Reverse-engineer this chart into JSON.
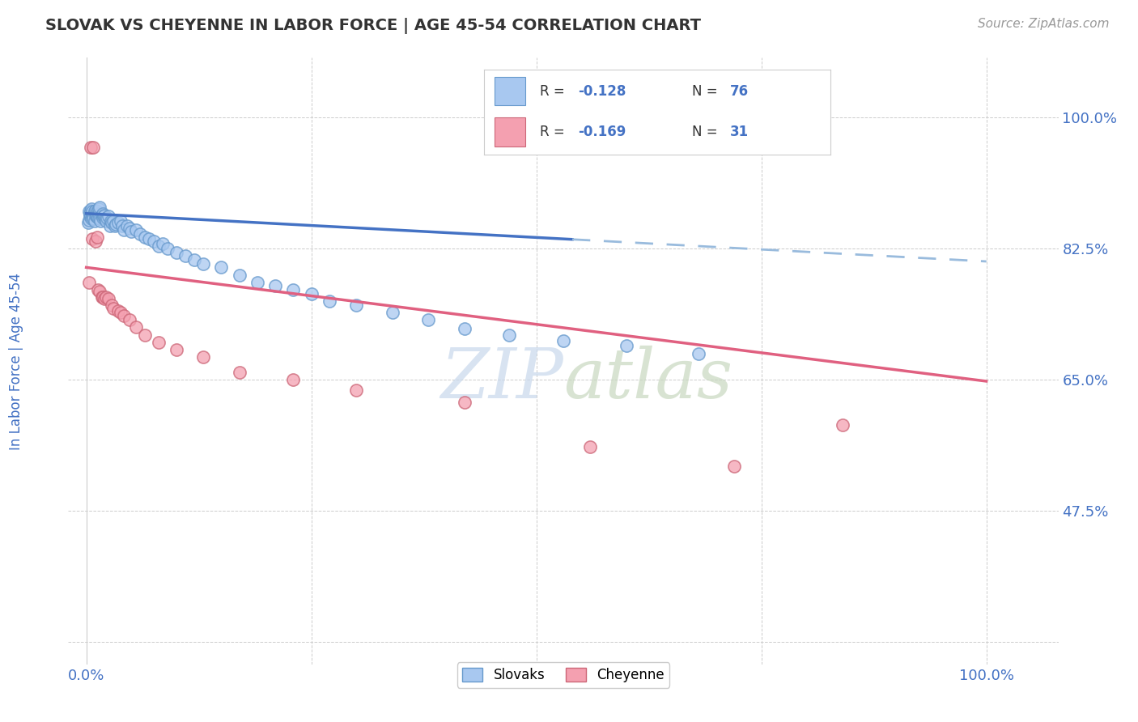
{
  "title": "SLOVAK VS CHEYENNE IN LABOR FORCE | AGE 45-54 CORRELATION CHART",
  "source": "Source: ZipAtlas.com",
  "ylabel": "In Labor Force | Age 45-54",
  "ytick_positions": [
    0.3,
    0.475,
    0.65,
    0.825,
    1.0
  ],
  "ytick_labels": [
    "",
    "47.5%",
    "65.0%",
    "82.5%",
    "100.0%"
  ],
  "xtick_positions": [
    0.0,
    0.25,
    0.5,
    0.75,
    1.0
  ],
  "xticklabels": [
    "0.0%",
    "",
    "",
    "",
    "100.0%"
  ],
  "legend_r_slovak": "-0.128",
  "legend_n_slovak": "76",
  "legend_r_cheyenne": "-0.169",
  "legend_n_cheyenne": "31",
  "color_slovak_fill": "#A8C8F0",
  "color_slovak_edge": "#6699CC",
  "color_cheyenne_fill": "#F4A0B0",
  "color_cheyenne_edge": "#CC6677",
  "color_trendline_slovak_solid": "#4472C4",
  "color_trendline_slovak_dash": "#99BBDD",
  "color_trendline_cheyenne": "#E06080",
  "title_color": "#333333",
  "source_color": "#999999",
  "axis_label_color": "#4472C4",
  "tick_color": "#4472C4",
  "watermark_color": "#CCDDEE",
  "slovak_x": [
    0.002,
    0.003,
    0.003,
    0.004,
    0.004,
    0.005,
    0.005,
    0.006,
    0.006,
    0.007,
    0.007,
    0.008,
    0.008,
    0.009,
    0.009,
    0.01,
    0.01,
    0.011,
    0.011,
    0.012,
    0.012,
    0.013,
    0.014,
    0.014,
    0.015,
    0.015,
    0.016,
    0.017,
    0.018,
    0.018,
    0.019,
    0.02,
    0.021,
    0.022,
    0.023,
    0.025,
    0.026,
    0.027,
    0.028,
    0.03,
    0.032,
    0.033,
    0.035,
    0.038,
    0.04,
    0.042,
    0.045,
    0.048,
    0.05,
    0.055,
    0.06,
    0.065,
    0.07,
    0.075,
    0.08,
    0.085,
    0.09,
    0.1,
    0.11,
    0.12,
    0.13,
    0.15,
    0.17,
    0.19,
    0.21,
    0.23,
    0.25,
    0.27,
    0.3,
    0.34,
    0.38,
    0.42,
    0.47,
    0.53,
    0.6,
    0.68
  ],
  "slovak_y": [
    0.86,
    0.863,
    0.875,
    0.868,
    0.872,
    0.87,
    0.876,
    0.865,
    0.878,
    0.868,
    0.875,
    0.87,
    0.865,
    0.875,
    0.862,
    0.87,
    0.876,
    0.872,
    0.868,
    0.875,
    0.87,
    0.866,
    0.872,
    0.878,
    0.865,
    0.88,
    0.862,
    0.87,
    0.866,
    0.872,
    0.868,
    0.87,
    0.865,
    0.862,
    0.866,
    0.868,
    0.855,
    0.862,
    0.86,
    0.862,
    0.855,
    0.858,
    0.86,
    0.862,
    0.855,
    0.85,
    0.855,
    0.852,
    0.848,
    0.85,
    0.845,
    0.84,
    0.838,
    0.835,
    0.828,
    0.832,
    0.825,
    0.82,
    0.815,
    0.81,
    0.805,
    0.8,
    0.79,
    0.78,
    0.775,
    0.77,
    0.765,
    0.755,
    0.75,
    0.74,
    0.73,
    0.718,
    0.71,
    0.702,
    0.695,
    0.685
  ],
  "cheyenne_x": [
    0.003,
    0.005,
    0.007,
    0.008,
    0.01,
    0.012,
    0.013,
    0.015,
    0.017,
    0.018,
    0.02,
    0.022,
    0.025,
    0.028,
    0.03,
    0.035,
    0.038,
    0.042,
    0.048,
    0.055,
    0.065,
    0.08,
    0.1,
    0.13,
    0.17,
    0.23,
    0.3,
    0.42,
    0.56,
    0.72,
    0.84
  ],
  "cheyenne_y": [
    0.78,
    0.96,
    0.838,
    0.96,
    0.835,
    0.84,
    0.77,
    0.768,
    0.76,
    0.76,
    0.758,
    0.76,
    0.758,
    0.75,
    0.745,
    0.742,
    0.74,
    0.735,
    0.73,
    0.72,
    0.71,
    0.7,
    0.69,
    0.68,
    0.66,
    0.65,
    0.636,
    0.62,
    0.56,
    0.535,
    0.59
  ],
  "trendline_slovak_x0": 0.0,
  "trendline_slovak_y0": 0.872,
  "trendline_slovak_x1": 1.0,
  "trendline_slovak_y1": 0.808,
  "trendline_slovak_solid_end": 0.54,
  "trendline_cheyenne_x0": 0.0,
  "trendline_cheyenne_y0": 0.8,
  "trendline_cheyenne_x1": 1.0,
  "trendline_cheyenne_y1": 0.648
}
